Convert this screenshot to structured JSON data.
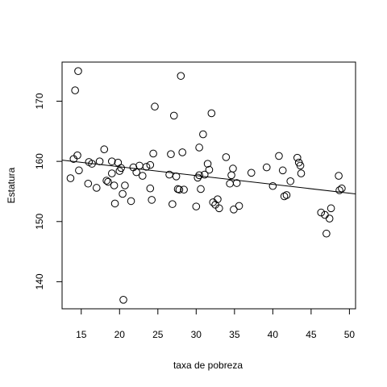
{
  "chart_data": {
    "type": "scatter",
    "title": "",
    "xlabel": "taxa de pobreza",
    "ylabel": "Estatura",
    "xlim": [
      12.5,
      50.8
    ],
    "ylim": [
      135.5,
      176.5
    ],
    "xticks": [
      15,
      20,
      25,
      30,
      35,
      40,
      45,
      50
    ],
    "yticks": [
      140,
      150,
      160,
      170
    ],
    "grid": false,
    "legend": "none",
    "marker": "open-circle",
    "regression_line": {
      "x": [
        12.5,
        50.8
      ],
      "y": [
        160.2,
        154.6
      ]
    },
    "points": [
      {
        "x": 13.6,
        "y": 157.2
      },
      {
        "x": 14.0,
        "y": 160.4
      },
      {
        "x": 14.2,
        "y": 171.8
      },
      {
        "x": 14.5,
        "y": 161.0
      },
      {
        "x": 14.6,
        "y": 175.0
      },
      {
        "x": 14.7,
        "y": 158.5
      },
      {
        "x": 15.9,
        "y": 156.3
      },
      {
        "x": 16.0,
        "y": 159.9
      },
      {
        "x": 16.4,
        "y": 159.6
      },
      {
        "x": 17.0,
        "y": 155.6
      },
      {
        "x": 17.4,
        "y": 160.0
      },
      {
        "x": 18.0,
        "y": 162.0
      },
      {
        "x": 18.3,
        "y": 156.8
      },
      {
        "x": 18.5,
        "y": 156.6
      },
      {
        "x": 19.0,
        "y": 158.0
      },
      {
        "x": 19.0,
        "y": 160.0
      },
      {
        "x": 19.3,
        "y": 156.0
      },
      {
        "x": 19.4,
        "y": 153.0
      },
      {
        "x": 19.8,
        "y": 159.8
      },
      {
        "x": 20.0,
        "y": 158.4
      },
      {
        "x": 20.2,
        "y": 158.9
      },
      {
        "x": 20.4,
        "y": 154.6
      },
      {
        "x": 20.5,
        "y": 137.0
      },
      {
        "x": 20.7,
        "y": 156.0
      },
      {
        "x": 21.5,
        "y": 153.4
      },
      {
        "x": 21.8,
        "y": 159.0
      },
      {
        "x": 22.2,
        "y": 158.2
      },
      {
        "x": 22.6,
        "y": 159.3
      },
      {
        "x": 23.0,
        "y": 157.6
      },
      {
        "x": 23.5,
        "y": 159.1
      },
      {
        "x": 24.0,
        "y": 159.4
      },
      {
        "x": 24.0,
        "y": 155.5
      },
      {
        "x": 24.2,
        "y": 153.6
      },
      {
        "x": 24.4,
        "y": 161.3
      },
      {
        "x": 24.6,
        "y": 169.1
      },
      {
        "x": 26.5,
        "y": 157.8
      },
      {
        "x": 26.7,
        "y": 161.2
      },
      {
        "x": 26.9,
        "y": 152.9
      },
      {
        "x": 27.1,
        "y": 167.6
      },
      {
        "x": 27.4,
        "y": 157.5
      },
      {
        "x": 27.6,
        "y": 155.4
      },
      {
        "x": 27.8,
        "y": 155.3
      },
      {
        "x": 28.0,
        "y": 174.2
      },
      {
        "x": 28.2,
        "y": 161.5
      },
      {
        "x": 28.4,
        "y": 155.3
      },
      {
        "x": 30.0,
        "y": 152.5
      },
      {
        "x": 30.2,
        "y": 157.3
      },
      {
        "x": 30.4,
        "y": 157.7
      },
      {
        "x": 30.4,
        "y": 162.3
      },
      {
        "x": 30.6,
        "y": 155.4
      },
      {
        "x": 30.9,
        "y": 164.5
      },
      {
        "x": 31.1,
        "y": 157.8
      },
      {
        "x": 31.5,
        "y": 159.6
      },
      {
        "x": 31.7,
        "y": 158.6
      },
      {
        "x": 32.0,
        "y": 168.0
      },
      {
        "x": 32.2,
        "y": 153.2
      },
      {
        "x": 32.5,
        "y": 152.8
      },
      {
        "x": 32.8,
        "y": 153.7
      },
      {
        "x": 33.0,
        "y": 152.2
      },
      {
        "x": 33.9,
        "y": 160.7
      },
      {
        "x": 34.4,
        "y": 156.3
      },
      {
        "x": 34.6,
        "y": 157.7
      },
      {
        "x": 34.8,
        "y": 158.8
      },
      {
        "x": 34.9,
        "y": 152.0
      },
      {
        "x": 35.3,
        "y": 156.4
      },
      {
        "x": 35.6,
        "y": 152.6
      },
      {
        "x": 37.2,
        "y": 158.1
      },
      {
        "x": 39.2,
        "y": 159.0
      },
      {
        "x": 40.0,
        "y": 155.9
      },
      {
        "x": 40.8,
        "y": 160.9
      },
      {
        "x": 41.3,
        "y": 158.5
      },
      {
        "x": 41.5,
        "y": 154.2
      },
      {
        "x": 41.8,
        "y": 154.4
      },
      {
        "x": 42.3,
        "y": 156.7
      },
      {
        "x": 43.2,
        "y": 160.6
      },
      {
        "x": 43.4,
        "y": 159.8
      },
      {
        "x": 43.6,
        "y": 159.3
      },
      {
        "x": 43.7,
        "y": 158.0
      },
      {
        "x": 46.3,
        "y": 151.5
      },
      {
        "x": 46.8,
        "y": 151.1
      },
      {
        "x": 47.0,
        "y": 148.0
      },
      {
        "x": 47.4,
        "y": 150.5
      },
      {
        "x": 47.6,
        "y": 152.2
      },
      {
        "x": 48.6,
        "y": 157.6
      },
      {
        "x": 48.7,
        "y": 155.2
      },
      {
        "x": 49.0,
        "y": 155.5
      }
    ]
  }
}
